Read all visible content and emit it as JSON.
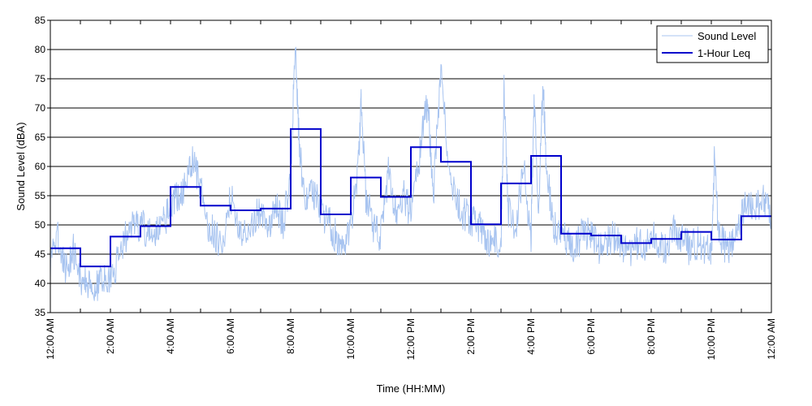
{
  "chart_data": {
    "type": "line",
    "xlabel": "Time (HH:MM)",
    "ylabel": "Sound Level (dBA)",
    "ylim": [
      35,
      85
    ],
    "yticks": [
      35,
      40,
      45,
      50,
      55,
      60,
      65,
      70,
      75,
      80,
      85
    ],
    "xlim": [
      0,
      24
    ],
    "xticks": [
      {
        "hour": 0,
        "label": "12:00 AM"
      },
      {
        "hour": 2,
        "label": "2:00 AM"
      },
      {
        "hour": 4,
        "label": "4:00 AM"
      },
      {
        "hour": 6,
        "label": "6:00 AM"
      },
      {
        "hour": 8,
        "label": "8:00 AM"
      },
      {
        "hour": 10,
        "label": "10:00 AM"
      },
      {
        "hour": 12,
        "label": "12:00 PM"
      },
      {
        "hour": 14,
        "label": "2:00 PM"
      },
      {
        "hour": 16,
        "label": "4:00 PM"
      },
      {
        "hour": 18,
        "label": "6:00 PM"
      },
      {
        "hour": 20,
        "label": "8:00 PM"
      },
      {
        "hour": 22,
        "label": "10:00 PM"
      },
      {
        "hour": 24,
        "label": "12:00 AM"
      }
    ],
    "grid": "horizontal",
    "legend_position": "top-right",
    "series": [
      {
        "name": "Sound Level",
        "color": "#a8c4f0",
        "x": [
          0,
          0.25,
          0.5,
          0.75,
          1,
          1.25,
          1.5,
          1.75,
          2,
          2.25,
          2.5,
          2.75,
          3,
          3.25,
          3.5,
          3.75,
          4,
          4.25,
          4.5,
          4.75,
          5,
          5.25,
          5.5,
          5.75,
          6,
          6.25,
          6.5,
          6.75,
          7,
          7.25,
          7.5,
          7.75,
          8,
          8.15,
          8.3,
          8.5,
          8.75,
          9,
          9.25,
          9.5,
          9.75,
          10,
          10.25,
          10.35,
          10.5,
          10.75,
          11,
          11.25,
          11.5,
          11.75,
          12,
          12.25,
          12.5,
          12.6,
          12.75,
          13,
          13.25,
          13.5,
          13.75,
          14,
          14.25,
          14.5,
          14.75,
          15,
          15.1,
          15.25,
          15.5,
          15.75,
          16,
          16.1,
          16.25,
          16.4,
          16.5,
          16.75,
          17,
          17.25,
          17.5,
          17.75,
          18,
          18.25,
          18.5,
          18.75,
          19,
          19.25,
          19.5,
          19.75,
          20,
          20.25,
          20.5,
          20.75,
          21,
          21.25,
          21.5,
          21.75,
          22,
          22.1,
          22.25,
          22.5,
          22.75,
          23,
          23.25,
          23.5,
          23.75,
          24
        ],
        "y": [
          44,
          48,
          42,
          46,
          41,
          40,
          39,
          41,
          40,
          44,
          48,
          50,
          50,
          49,
          48,
          50,
          53,
          55,
          57,
          61,
          56,
          50,
          48,
          47,
          55,
          50,
          48,
          51,
          52,
          49,
          53,
          50,
          58,
          81,
          62,
          54,
          56,
          52,
          51,
          48,
          47,
          50,
          60,
          72,
          55,
          50,
          48,
          59,
          52,
          55,
          52,
          60,
          70,
          68,
          55,
          77,
          60,
          54,
          52,
          51,
          50,
          47,
          48,
          46,
          73,
          52,
          50,
          60,
          48,
          73,
          52,
          75,
          60,
          50,
          48,
          47,
          46,
          49,
          48,
          46,
          47,
          48,
          46,
          45,
          47,
          46,
          48,
          47,
          46,
          49,
          48,
          46,
          47,
          46,
          45,
          61,
          48,
          46,
          47,
          52,
          54,
          53,
          55,
          52
        ]
      },
      {
        "name": "1-Hour Leq",
        "color": "#0000cc",
        "step_values": [
          46,
          42.9,
          48,
          49.8,
          56.5,
          53.3,
          52.5,
          52.8,
          66.4,
          51.8,
          58.1,
          54.8,
          63.3,
          60.8,
          50.1,
          57.1,
          61.8,
          48.5,
          48.2,
          46.9,
          47.6,
          48.8,
          47.5,
          51.5
        ]
      }
    ]
  }
}
